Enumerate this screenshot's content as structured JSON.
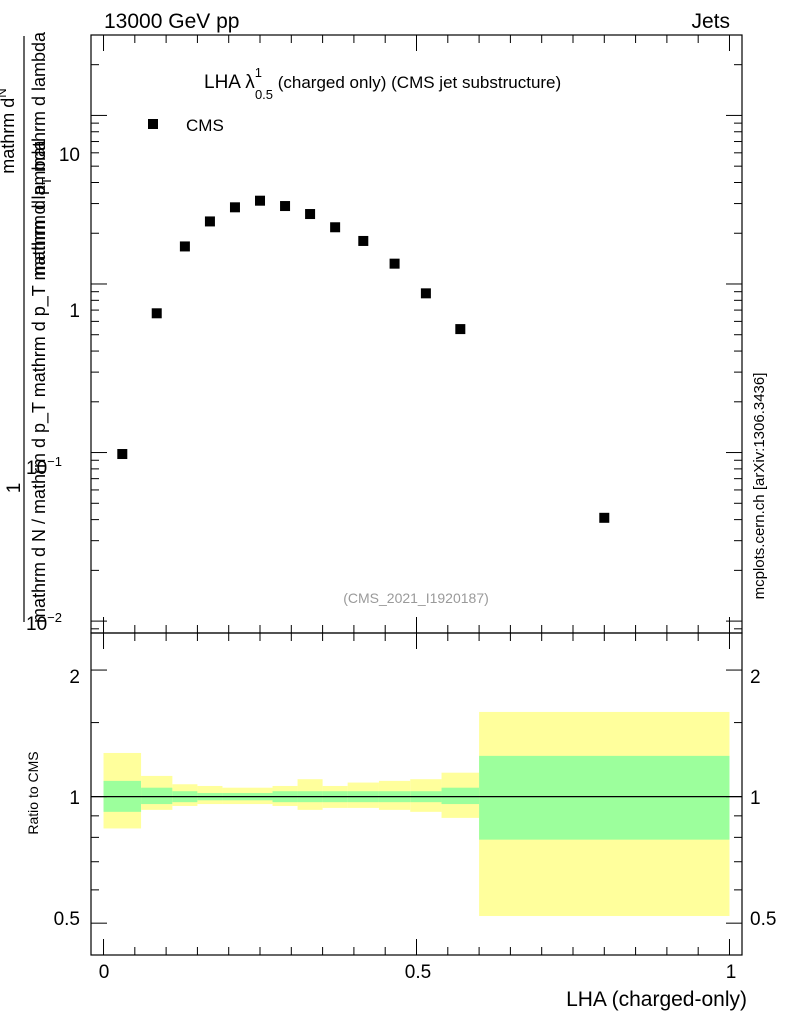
{
  "header": {
    "left": "13000 GeV pp",
    "right": "Jets"
  },
  "side_label": "mcplots.cern.ch [arXiv:1306.3436]",
  "watermark": "(CMS_2021_I1920187)",
  "main_plot": {
    "title_prefix": "LHA ",
    "title_lambda": "λ",
    "title_sup": "1",
    "title_sub": "0.5",
    "title_suffix": " (charged only) (CMS jet substructure)",
    "legend_label": "CMS",
    "y_label_numerator": "1",
    "y_label_denominator": "mathrm d N / mathrm d p_T mathrm d p_T mathrm d lambda",
    "y_label_upper_a": "mathrm d",
    "y_label_upper_b": "N",
    "y_label_lower_a": "mathrm d p",
    "y_label_lower_b": "T",
    "y_label_lower_c": " mathrm d lambda",
    "y_tick_10": "10",
    "y_tick_1": "1",
    "y_tick_01_base": "10",
    "y_tick_01_exp": "−1",
    "y_tick_001_base": "10",
    "y_tick_001_exp": "−2"
  },
  "ratio_plot": {
    "y_label": "Ratio to CMS",
    "y_ticks": [
      "2",
      "1",
      "0.5"
    ]
  },
  "x_axis": {
    "label": "LHA (charged-only)",
    "ticks": [
      "0",
      "0.5",
      "1"
    ]
  },
  "colors": {
    "marker": "#000000",
    "band_inner": "#9cff9c",
    "band_outer": "#ffff9c"
  },
  "chart_data": [
    {
      "type": "scatter",
      "title": "LHA λ^1_0.5 (charged only) (CMS jet substructure)",
      "xlabel": "LHA (charged-only)",
      "ylabel": "1/(dN/dpT) d²N/(dpT dλ)",
      "yscale": "log",
      "xlim": [
        -0.02,
        1.02
      ],
      "ylim": [
        0.0085,
        30
      ],
      "series": [
        {
          "name": "CMS",
          "x": [
            0.03,
            0.085,
            0.13,
            0.17,
            0.21,
            0.25,
            0.29,
            0.33,
            0.37,
            0.415,
            0.465,
            0.515,
            0.57,
            0.8
          ],
          "y": [
            0.098,
            0.67,
            1.67,
            2.35,
            2.85,
            3.12,
            2.9,
            2.6,
            2.17,
            1.8,
            1.32,
            0.88,
            0.54,
            0.041
          ]
        }
      ]
    },
    {
      "type": "area",
      "title": "Ratio to CMS",
      "yscale": "log",
      "ylim": [
        0.42,
        2.45
      ],
      "reference_line": 1,
      "bins": [
        {
          "lo": 0.0,
          "hi": 0.06,
          "inner": [
            0.92,
            1.09
          ],
          "outer": [
            0.84,
            1.27
          ]
        },
        {
          "lo": 0.06,
          "hi": 0.11,
          "inner": [
            0.96,
            1.05
          ],
          "outer": [
            0.93,
            1.12
          ]
        },
        {
          "lo": 0.11,
          "hi": 0.15,
          "inner": [
            0.97,
            1.03
          ],
          "outer": [
            0.95,
            1.07
          ]
        },
        {
          "lo": 0.15,
          "hi": 0.19,
          "inner": [
            0.98,
            1.02
          ],
          "outer": [
            0.96,
            1.06
          ]
        },
        {
          "lo": 0.19,
          "hi": 0.23,
          "inner": [
            0.98,
            1.02
          ],
          "outer": [
            0.96,
            1.05
          ]
        },
        {
          "lo": 0.23,
          "hi": 0.27,
          "inner": [
            0.98,
            1.02
          ],
          "outer": [
            0.96,
            1.05
          ]
        },
        {
          "lo": 0.27,
          "hi": 0.31,
          "inner": [
            0.97,
            1.03
          ],
          "outer": [
            0.95,
            1.06
          ]
        },
        {
          "lo": 0.31,
          "hi": 0.35,
          "inner": [
            0.97,
            1.03
          ],
          "outer": [
            0.93,
            1.1
          ]
        },
        {
          "lo": 0.35,
          "hi": 0.39,
          "inner": [
            0.97,
            1.03
          ],
          "outer": [
            0.94,
            1.06
          ]
        },
        {
          "lo": 0.39,
          "hi": 0.44,
          "inner": [
            0.97,
            1.03
          ],
          "outer": [
            0.94,
            1.08
          ]
        },
        {
          "lo": 0.44,
          "hi": 0.49,
          "inner": [
            0.97,
            1.03
          ],
          "outer": [
            0.93,
            1.09
          ]
        },
        {
          "lo": 0.49,
          "hi": 0.54,
          "inner": [
            0.97,
            1.03
          ],
          "outer": [
            0.92,
            1.1
          ]
        },
        {
          "lo": 0.54,
          "hi": 0.6,
          "inner": [
            0.96,
            1.05
          ],
          "outer": [
            0.89,
            1.14
          ]
        },
        {
          "lo": 0.6,
          "hi": 1.0,
          "inner": [
            0.79,
            1.25
          ],
          "outer": [
            0.52,
            1.59
          ]
        }
      ]
    }
  ]
}
